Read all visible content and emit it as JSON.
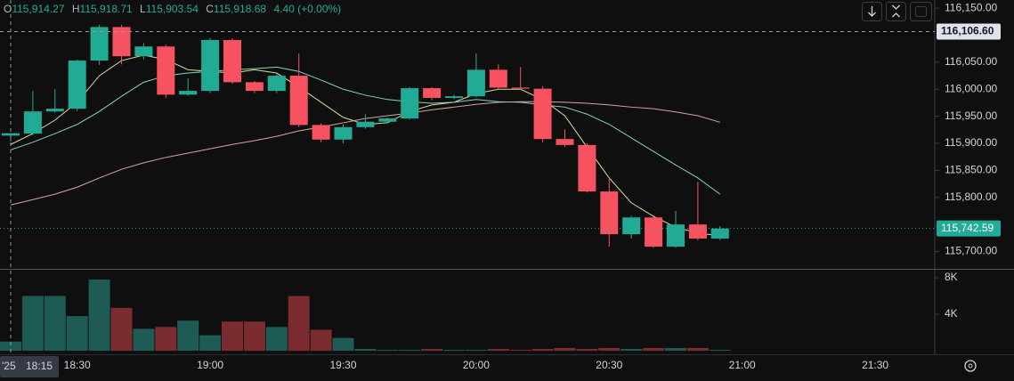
{
  "chart_data": {
    "type": "candlestick",
    "header": {
      "items": [
        {
          "k": "O",
          "v": "115,914.27"
        },
        {
          "k": "H",
          "v": "115,918.71"
        },
        {
          "k": "L",
          "v": "115,903.54"
        },
        {
          "k": "C",
          "v": "115,918.68"
        }
      ],
      "change": "4.40 (+0.00%)"
    },
    "categories": [
      "18:15",
      null,
      null,
      "18:30",
      null,
      null,
      null,
      null,
      null,
      "19:00",
      null,
      null,
      null,
      null,
      null,
      "19:30",
      null,
      null,
      null,
      null,
      null,
      "20:00",
      null,
      null,
      null,
      null,
      null,
      "20:30",
      null,
      null,
      null,
      null,
      null,
      "21:00",
      null,
      null,
      null,
      null,
      null,
      "21:30",
      null,
      null
    ],
    "open": [
      115914.27,
      115918,
      115959,
      115964,
      116053,
      116115,
      116061,
      116079,
      115990,
      115997,
      116091,
      116013,
      115997,
      116025,
      115934,
      115907,
      115930,
      115940,
      115946,
      116002,
      115984,
      115987,
      116036,
      116003,
      116001,
      115908,
      115897,
      115811,
      115732,
      115763,
      115709,
      115750,
      115724,
      null,
      null,
      null,
      null,
      null,
      null,
      null,
      null,
      null
    ],
    "high": [
      115918.71,
      115997,
      116000,
      116055,
      116119,
      116119,
      116085,
      116082,
      116020,
      116095,
      116094,
      116015,
      116030,
      116066,
      115937,
      115935,
      115954,
      115948,
      116004,
      116004,
      115990,
      116066,
      116046,
      116041,
      116005,
      115926,
      115900,
      115836,
      115766,
      115767,
      115775,
      115829,
      115747,
      null,
      null,
      null,
      null,
      null,
      null,
      null,
      null,
      null
    ],
    "low": [
      115903.54,
      115915,
      115957,
      115960,
      116045,
      116046,
      116055,
      115984,
      115988,
      115993,
      116010,
      115993,
      115993,
      115930,
      115902,
      115900,
      115927,
      115938,
      115944,
      115980,
      115982,
      115985,
      116000,
      115999,
      115902,
      115894,
      115809,
      115709,
      115724,
      115707,
      115707,
      115721,
      115721,
      null,
      null,
      null,
      null,
      null,
      null,
      null,
      null,
      null
    ],
    "close": [
      115918.68,
      115959,
      115964,
      116053,
      116115,
      116061,
      116079,
      115990,
      115997,
      116091,
      116013,
      115997,
      116025,
      115934,
      115907,
      115930,
      115940,
      115946,
      116002,
      115984,
      115987,
      116036,
      116003,
      116001,
      115908,
      115897,
      115811,
      115732,
      115763,
      115709,
      115750,
      115724,
      115742.59,
      null,
      null,
      null,
      null,
      null,
      null,
      null,
      null,
      null
    ],
    "volume": [
      1000,
      6000,
      6000,
      3800,
      7800,
      4700,
      2400,
      2600,
      3300,
      1700,
      3200,
      3200,
      2600,
      6000,
      2300,
      1400,
      200,
      100,
      100,
      200,
      100,
      100,
      200,
      100,
      200,
      300,
      200,
      300,
      200,
      300,
      300,
      300,
      100,
      null,
      null,
      null,
      null,
      null,
      null,
      null,
      null,
      null
    ],
    "lines": [
      {
        "color": "#d8dc9c",
        "values": [
          115898,
          115918,
          115943,
          115976,
          116025,
          116053,
          116063,
          116055,
          116036,
          116033,
          116030,
          116036,
          116030,
          116004,
          115976,
          115948,
          115935,
          115938,
          115959,
          115971,
          115976,
          115992,
          116000,
          116000,
          115981,
          115951,
          115893,
          115836,
          115790,
          115765,
          115745,
          115734,
          115729,
          null,
          null,
          null,
          null,
          null,
          null,
          null,
          null,
          null
        ]
      },
      {
        "color": "#86d3c3",
        "values": [
          115888,
          115902,
          115918,
          115935,
          115959,
          115987,
          116013,
          116025,
          116030,
          116033,
          116036,
          116038,
          116041,
          116033,
          116017,
          116000,
          115989,
          115981,
          115977,
          115974,
          115976,
          115981,
          115977,
          115976,
          115971,
          115967,
          115954,
          115935,
          115910,
          115885,
          115860,
          115836,
          115806,
          null,
          null,
          null,
          null,
          null,
          null,
          null,
          null,
          null
        ]
      },
      {
        "color": "#d9a3a3",
        "values": [
          115786,
          115796,
          115806,
          115819,
          115836,
          115852,
          115864,
          115874,
          115882,
          115890,
          115898,
          115905,
          115913,
          115923,
          115930,
          115938,
          115946,
          115951,
          115956,
          115962,
          115967,
          115972,
          115976,
          115977,
          115977,
          115976,
          115974,
          115971,
          115967,
          115964,
          115958,
          115951,
          115939,
          null,
          null,
          null,
          null,
          null,
          null,
          null,
          null,
          null
        ]
      }
    ],
    "up_color": "#22ab94",
    "down_color": "#f7525f",
    "volume_up_color": "#1d5b54",
    "volume_down_color": "#7b2c30",
    "ylim": [
      115668,
      116165
    ],
    "yticks": [
      {
        "value": 116150,
        "label": "116,150.00"
      },
      {
        "value": 116050,
        "label": "116,050.00"
      },
      {
        "value": 116000,
        "label": "116,000.00"
      },
      {
        "value": 115950,
        "label": "115,950.00"
      },
      {
        "value": 115900,
        "label": "115,900.00"
      },
      {
        "value": 115850,
        "label": "115,850.00"
      },
      {
        "value": 115800,
        "label": "115,800.00"
      },
      {
        "value": 115700,
        "label": "115,700.00"
      }
    ],
    "volume_ylim": [
      0,
      8880
    ],
    "volume_ticks": [
      {
        "value": 8000,
        "label": "8K"
      },
      {
        "value": 4000,
        "label": "4K"
      }
    ],
    "crosshair_price": {
      "value": 116106.6,
      "label": "116,106.60"
    },
    "crosshair_date": "'25",
    "last_price": {
      "value": 115742.59,
      "label": "115,742.59"
    }
  }
}
